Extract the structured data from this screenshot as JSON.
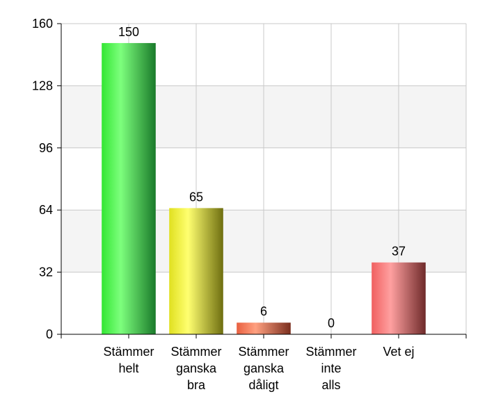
{
  "chart_data": {
    "type": "bar",
    "categories": [
      [
        "Stämmer",
        "helt"
      ],
      [
        "Stämmer",
        "ganska",
        "bra"
      ],
      [
        "Stämmer",
        "ganska",
        "dåligt"
      ],
      [
        "Stämmer",
        "inte",
        "alls"
      ],
      [
        "Vet ej"
      ]
    ],
    "values": [
      150,
      65,
      6,
      0,
      37
    ],
    "ylim": [
      0,
      160
    ],
    "yticks": [
      0,
      32,
      64,
      96,
      128,
      160
    ],
    "grid": true,
    "legend": "none",
    "bar_colors": [
      {
        "light": "#7dff7d",
        "base": "#33e633",
        "dark": "#1a7a2a"
      },
      {
        "light": "#ffff70",
        "base": "#e0e020",
        "dark": "#6e6e10"
      },
      {
        "light": "#ffa080",
        "base": "#e86040",
        "dark": "#7a2e1e"
      },
      {
        "light": "#c0c0c0",
        "base": "#909090",
        "dark": "#505050"
      },
      {
        "light": "#ffa0a0",
        "base": "#f06060",
        "dark": "#6e2a2a"
      }
    ],
    "band_color": "#f4f4f4",
    "grid_color": "#c8c8c8"
  }
}
